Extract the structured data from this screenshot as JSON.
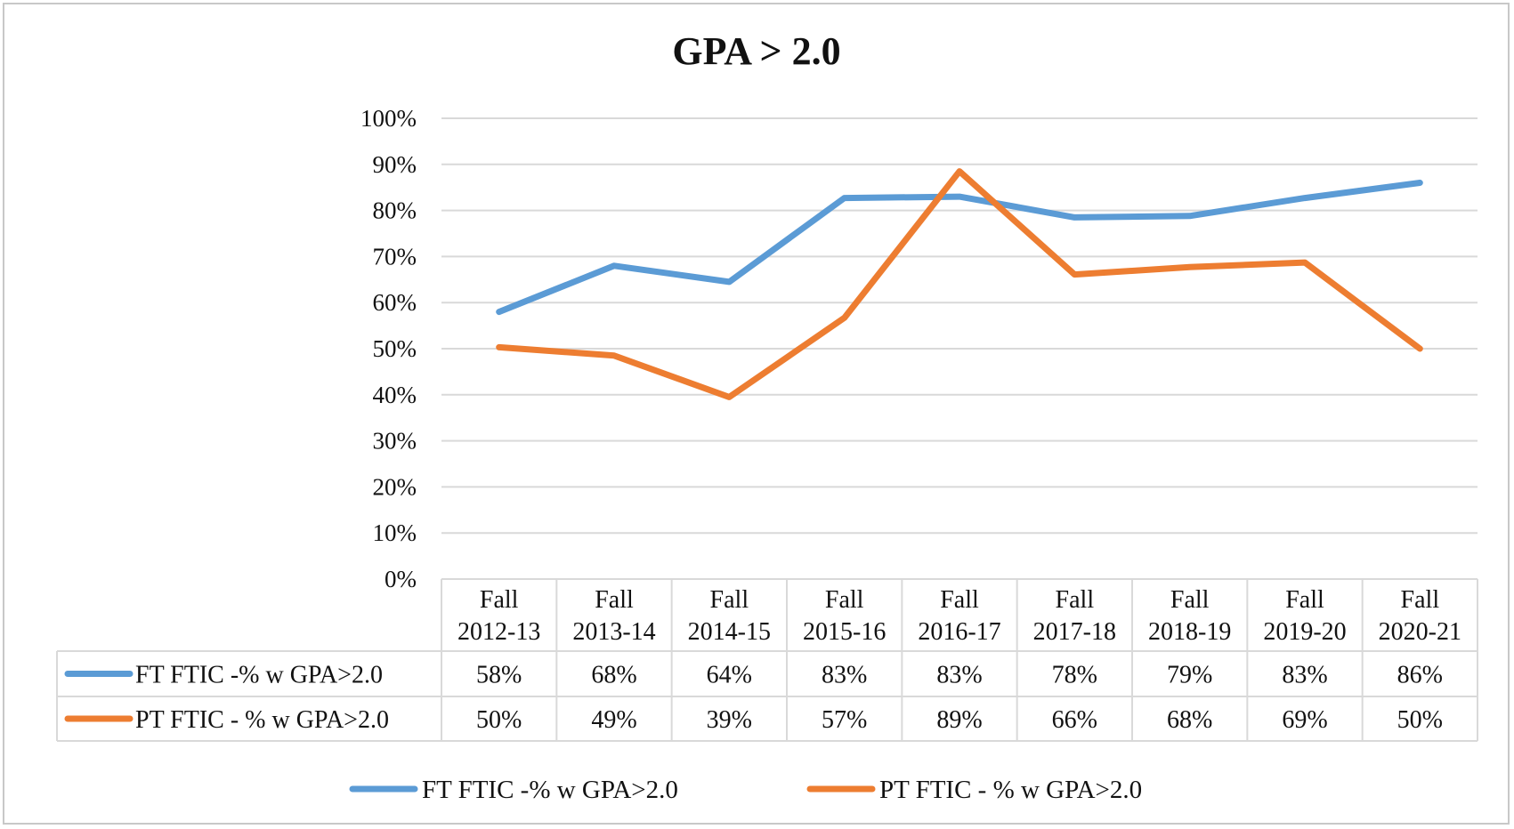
{
  "chart_data": {
    "type": "line",
    "title": "GPA > 2.0",
    "categories": [
      [
        "Fall",
        "2012-13"
      ],
      [
        "Fall",
        "2013-14"
      ],
      [
        "Fall",
        "2014-15"
      ],
      [
        "Fall",
        "2015-16"
      ],
      [
        "Fall",
        "2016-17"
      ],
      [
        "Fall",
        "2017-18"
      ],
      [
        "Fall",
        "2018-19"
      ],
      [
        "Fall",
        "2019-20"
      ],
      [
        "Fall",
        "2020-21"
      ]
    ],
    "y_ticks": [
      "0%",
      "10%",
      "20%",
      "30%",
      "40%",
      "50%",
      "60%",
      "70%",
      "80%",
      "90%",
      "100%"
    ],
    "ylim": [
      0,
      100
    ],
    "grid": true,
    "legend_position": "bottom",
    "data_table": true,
    "series": [
      {
        "name": "FT FTIC -% w GPA>2.0",
        "color": "#5B9BD5",
        "values": [
          58,
          68,
          64.5,
          82.7,
          83,
          78.5,
          78.8,
          82.7,
          86
        ],
        "labels": [
          "58%",
          "68%",
          "64%",
          "83%",
          "83%",
          "78%",
          "79%",
          "83%",
          "86%"
        ]
      },
      {
        "name": "PT FTIC - % w GPA>2.0",
        "color": "#ED7D31",
        "values": [
          50.3,
          48.5,
          39.5,
          56.7,
          88.5,
          66.1,
          67.7,
          68.7,
          50
        ],
        "labels": [
          "50%",
          "49%",
          "39%",
          "57%",
          "89%",
          "66%",
          "68%",
          "69%",
          "50%"
        ]
      }
    ]
  }
}
